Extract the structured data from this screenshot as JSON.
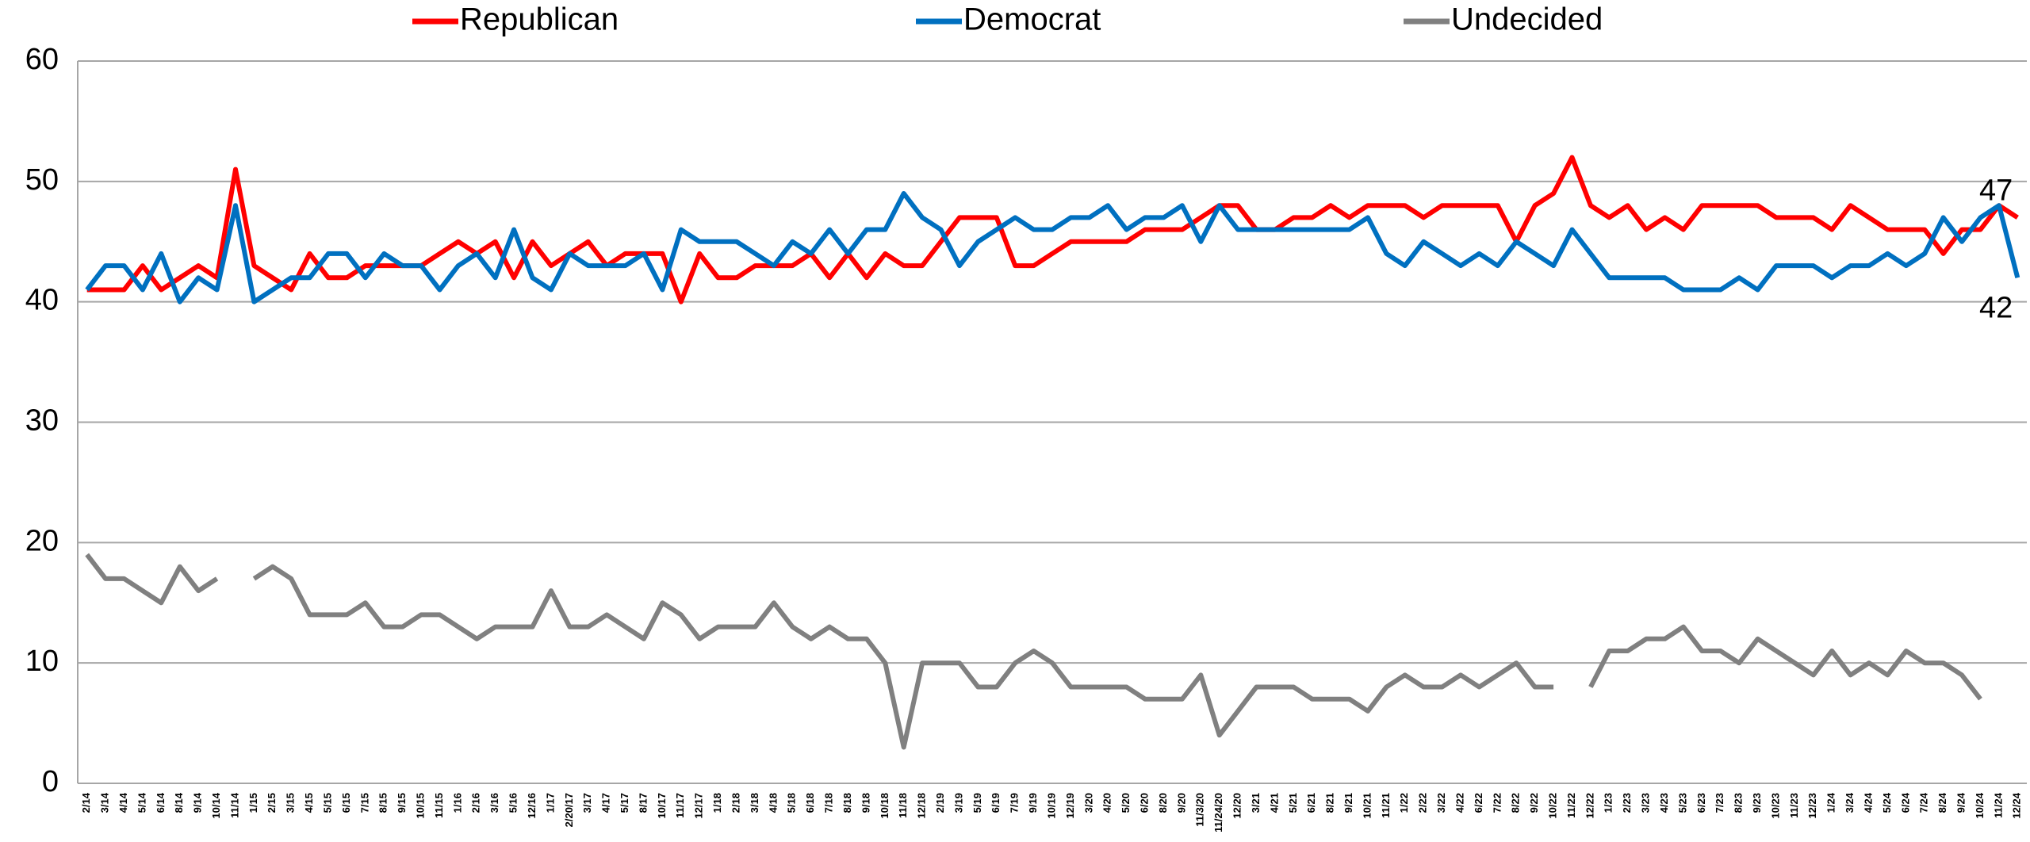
{
  "chart_data": {
    "type": "line",
    "categories": [
      "2/14",
      "3/14",
      "4/14",
      "5/14",
      "6/14",
      "8/14",
      "9/14",
      "10/14",
      "11/14",
      "1/15",
      "2/15",
      "3/15",
      "4/15",
      "5/15",
      "6/15",
      "7/15",
      "8/15",
      "9/15",
      "10/15",
      "11/15",
      "1/16",
      "2/16",
      "3/16",
      "5/16",
      "12/16",
      "1/17",
      "2/20/17",
      "3/17",
      "4/17",
      "5/17",
      "8/17",
      "10/17",
      "11/17",
      "12/17",
      "1/18",
      "2/18",
      "3/18",
      "4/18",
      "5/18",
      "6/18",
      "7/18",
      "8/18",
      "9/18",
      "10/18",
      "11/18",
      "12/18",
      "2/19",
      "3/19",
      "5/19",
      "6/19",
      "7/19",
      "9/19",
      "10/19",
      "12/19",
      "3/20",
      "4/20",
      "5/20",
      "6/20",
      "8/20",
      "9/20",
      "11/3/20",
      "11/24/20",
      "12/20",
      "3/21",
      "4/21",
      "5/21",
      "6/21",
      "8/21",
      "9/21",
      "10/21",
      "11/21",
      "1/22",
      "2/22",
      "3/22",
      "4/22",
      "6/22",
      "7/22",
      "8/22",
      "9/22",
      "10/22",
      "11/22",
      "12/22",
      "1/23",
      "2/23",
      "3/23",
      "4/23",
      "5/23",
      "6/23",
      "7/23",
      "8/23",
      "9/23",
      "10/23",
      "11/23",
      "12/23",
      "1/24",
      "3/24",
      "4/24",
      "5/24",
      "6/24",
      "7/24",
      "8/24",
      "9/24",
      "10/24",
      "11/24",
      "12/24"
    ],
    "series": [
      {
        "name": "Republican",
        "color": "#ff0000",
        "show_last_label": "above",
        "values": [
          41,
          41,
          41,
          43,
          41,
          42,
          43,
          42,
          51,
          43,
          42,
          41,
          44,
          42,
          42,
          43,
          43,
          43,
          43,
          44,
          45,
          44,
          45,
          42,
          45,
          43,
          44,
          45,
          43,
          44,
          44,
          44,
          40,
          44,
          42,
          42,
          43,
          43,
          43,
          44,
          42,
          44,
          42,
          44,
          43,
          43,
          45,
          47,
          47,
          47,
          43,
          43,
          44,
          45,
          45,
          45,
          45,
          46,
          46,
          46,
          47,
          48,
          48,
          46,
          46,
          47,
          47,
          48,
          47,
          48,
          48,
          48,
          47,
          48,
          48,
          48,
          48,
          45,
          48,
          49,
          52,
          48,
          47,
          48,
          46,
          47,
          46,
          48,
          48,
          48,
          48,
          47,
          47,
          47,
          46,
          48,
          47,
          46,
          46,
          46,
          44,
          46,
          46,
          48,
          47
        ]
      },
      {
        "name": "Democrat",
        "color": "#0070c0",
        "show_last_label": "below",
        "values": [
          41,
          43,
          43,
          41,
          44,
          40,
          42,
          41,
          48,
          40,
          41,
          42,
          42,
          44,
          44,
          42,
          44,
          43,
          43,
          41,
          43,
          44,
          42,
          46,
          42,
          41,
          44,
          43,
          43,
          43,
          44,
          41,
          46,
          45,
          45,
          45,
          44,
          43,
          45,
          44,
          46,
          44,
          46,
          46,
          49,
          47,
          46,
          43,
          45,
          46,
          47,
          46,
          46,
          47,
          47,
          48,
          46,
          47,
          47,
          48,
          45,
          48,
          46,
          46,
          46,
          46,
          46,
          46,
          46,
          47,
          44,
          43,
          45,
          44,
          43,
          44,
          43,
          45,
          44,
          43,
          46,
          44,
          42,
          42,
          42,
          42,
          41,
          41,
          41,
          42,
          41,
          43,
          43,
          43,
          42,
          43,
          43,
          44,
          43,
          44,
          47,
          45,
          47,
          48,
          42
        ]
      },
      {
        "name": "Undecided",
        "color": "#808080",
        "values": [
          19,
          17,
          17,
          16,
          15,
          18,
          16,
          17,
          null,
          17,
          18,
          17,
          14,
          14,
          14,
          15,
          13,
          13,
          14,
          14,
          13,
          12,
          13,
          13,
          13,
          16,
          13,
          13,
          14,
          13,
          12,
          15,
          14,
          12,
          13,
          13,
          13,
          15,
          13,
          12,
          13,
          12,
          12,
          10,
          3,
          10,
          10,
          10,
          8,
          8,
          10,
          11,
          10,
          8,
          8,
          8,
          8,
          7,
          7,
          7,
          9,
          4,
          6,
          8,
          8,
          8,
          7,
          7,
          7,
          6,
          8,
          9,
          8,
          8,
          9,
          8,
          9,
          10,
          8,
          8,
          null,
          8,
          11,
          11,
          12,
          12,
          13,
          11,
          11,
          10,
          12,
          11,
          10,
          9,
          11,
          9,
          10,
          9,
          11,
          10,
          10,
          9,
          7,
          null,
          null
        ]
      }
    ],
    "ylim": [
      0,
      60
    ],
    "yticks": [
      0,
      10,
      20,
      30,
      40,
      50,
      60
    ],
    "grid": true,
    "legend": "top"
  }
}
